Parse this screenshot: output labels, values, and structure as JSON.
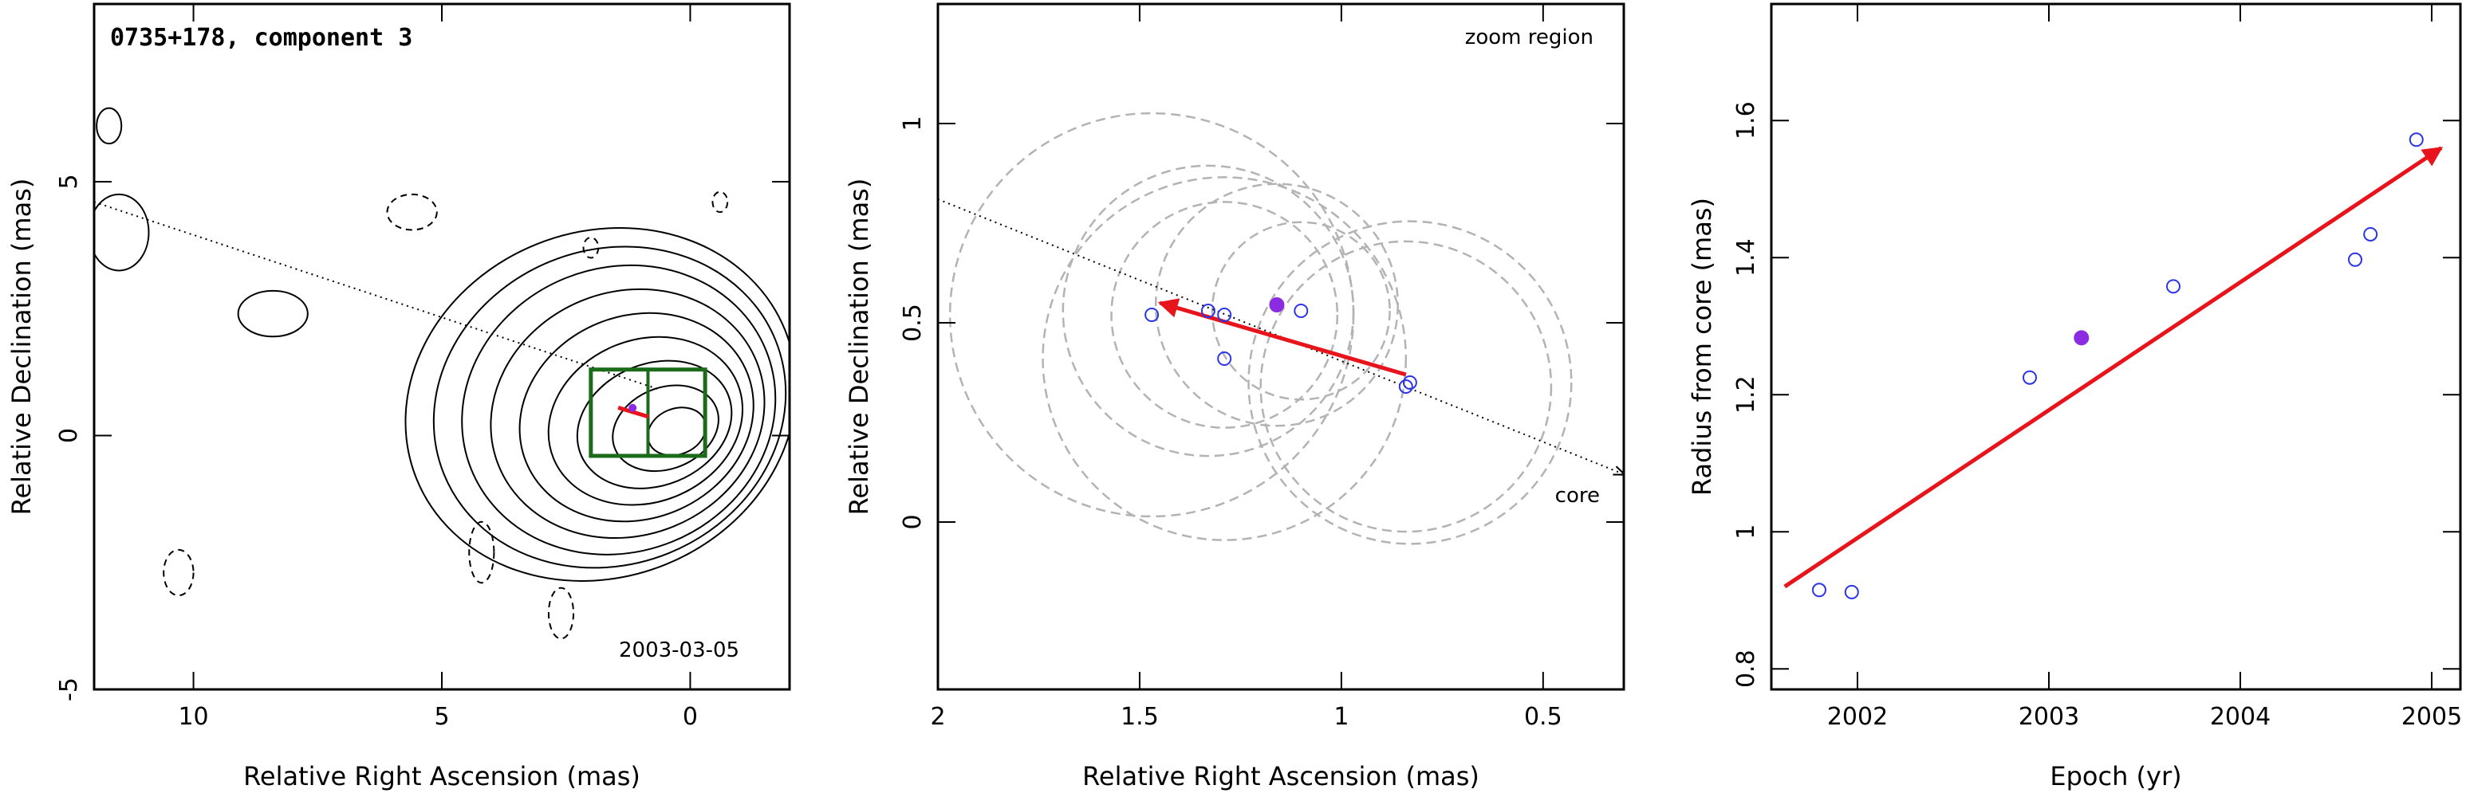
{
  "colors": {
    "contour": "#000000",
    "zoom_box": "#1a6b1a",
    "arrow": "#e8141c",
    "open_point": "#2b35e6",
    "filled_point": "#8b2be2",
    "beam_circle": "#b3b3b3"
  },
  "chart_data": [
    {
      "type": "contour",
      "title": "0735+178, component 3",
      "date_label": "2003-03-05",
      "xlabel": "Relative Right Ascension (mas)",
      "ylabel": "Relative Declination (mas)",
      "xlim": [
        12,
        -2
      ],
      "ylim": [
        -5,
        8.5
      ],
      "xticks": [
        10,
        5,
        0
      ],
      "yticks": [
        -5,
        0,
        5
      ],
      "zoom_region": {
        "x_range": [
          2,
          -0.3
        ],
        "y_range": [
          -0.4,
          1.3
        ]
      },
      "direction_line": {
        "from": [
          12,
          4.6
        ],
        "to": [
          0.6,
          0.9
        ]
      },
      "core_contour_levels": [
        {
          "rx": 0.6,
          "ry": 0.45
        },
        {
          "rx": 1.1,
          "ry": 0.8
        },
        {
          "rx": 1.6,
          "ry": 1.2
        },
        {
          "rx": 2.0,
          "ry": 1.6
        },
        {
          "rx": 2.4,
          "ry": 2.0
        },
        {
          "rx": 2.8,
          "ry": 2.4
        },
        {
          "rx": 3.2,
          "ry": 2.8
        },
        {
          "rx": 3.6,
          "ry": 3.1
        },
        {
          "rx": 4.0,
          "ry": 3.4
        }
      ]
    },
    {
      "type": "scatter",
      "annotation_top": "zoom region",
      "annotation_core": "core",
      "xlabel": "Relative Right Ascension (mas)",
      "ylabel": "Relative Declination (mas)",
      "xlim": [
        2.0,
        0.3
      ],
      "ylim": [
        -0.42,
        1.3
      ],
      "xticks": [
        2,
        1.5,
        1,
        0.5
      ],
      "yticks": [
        0,
        0.5,
        1
      ],
      "open_points": [
        [
          1.47,
          0.52
        ],
        [
          1.33,
          0.53
        ],
        [
          1.29,
          0.52
        ],
        [
          1.29,
          0.41
        ],
        [
          1.1,
          0.53
        ],
        [
          0.84,
          0.34
        ],
        [
          0.83,
          0.35
        ]
      ],
      "filled_points": [
        [
          1.16,
          0.545
        ]
      ],
      "beam_circles": [
        {
          "x": 1.47,
          "y": 0.52,
          "r": 0.5
        },
        {
          "x": 1.33,
          "y": 0.53,
          "r": 0.36
        },
        {
          "x": 1.29,
          "y": 0.52,
          "r": 0.28
        },
        {
          "x": 1.29,
          "y": 0.41,
          "r": 0.45
        },
        {
          "x": 1.16,
          "y": 0.545,
          "r": 0.3
        },
        {
          "x": 1.1,
          "y": 0.53,
          "r": 0.22
        },
        {
          "x": 0.84,
          "y": 0.34,
          "r": 0.36
        },
        {
          "x": 0.83,
          "y": 0.35,
          "r": 0.4
        }
      ],
      "arrow": {
        "from": [
          0.84,
          0.37
        ],
        "to": [
          1.45,
          0.55
        ]
      },
      "direction_line": {
        "from": [
          2.0,
          0.81
        ],
        "to": [
          0.3,
          0.12
        ]
      }
    },
    {
      "type": "scatter",
      "xlabel": "Epoch (yr)",
      "ylabel": "Radius from core (mas)",
      "xlim": [
        2001.55,
        2005.15
      ],
      "ylim": [
        0.77,
        1.77
      ],
      "xticks": [
        2002,
        2003,
        2004,
        2005
      ],
      "yticks": [
        0.8,
        1,
        1.2,
        1.4,
        1.6
      ],
      "open_points": [
        [
          2001.8,
          0.915
        ],
        [
          2001.97,
          0.912
        ],
        [
          2002.9,
          1.225
        ],
        [
          2003.65,
          1.358
        ],
        [
          2004.6,
          1.397
        ],
        [
          2004.68,
          1.434
        ],
        [
          2004.92,
          1.572
        ]
      ],
      "filled_points": [
        [
          2003.17,
          1.283
        ]
      ],
      "arrow": {
        "from": [
          2001.62,
          0.92
        ],
        "to": [
          2005.05,
          1.56
        ]
      }
    }
  ]
}
